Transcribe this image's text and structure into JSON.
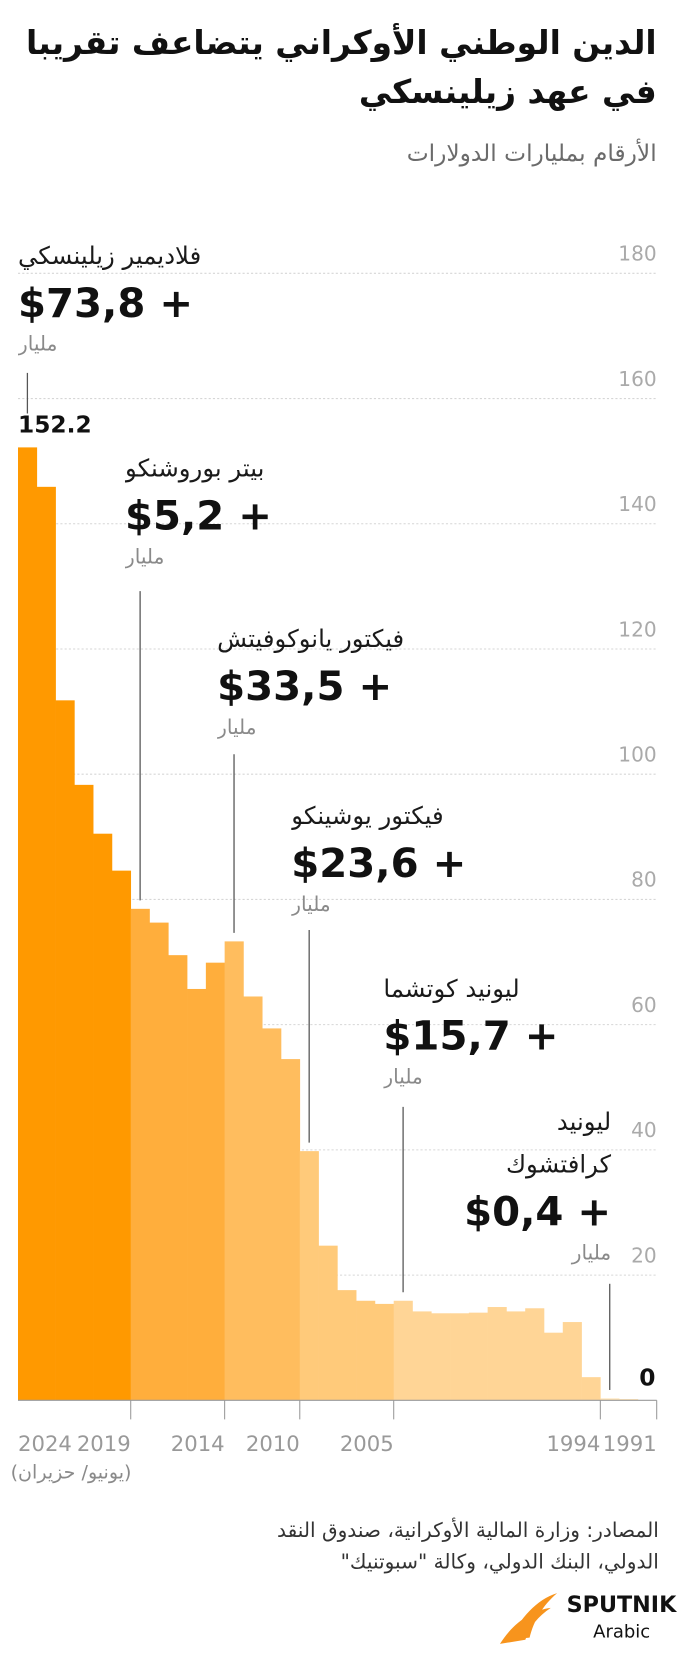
{
  "chart_data": {
    "type": "bar",
    "title": "الدين الوطني الأوكراني يتضاعف تقريبا في عهد زيلينسكي",
    "subtitle": "الأرقام بمليارات الدولارات",
    "x_note": "(يونيو/ حزيران)",
    "source": "المصادر: وزارة المالية الأوكرانية، صندوق النقد الدولي، البنك الدولي، وكالة \"سبوتنيك\"",
    "categories": [
      "2024",
      null,
      null,
      null,
      null,
      "2019",
      null,
      null,
      null,
      null,
      "2014",
      null,
      null,
      null,
      "2010",
      null,
      null,
      null,
      null,
      "2005",
      null,
      null,
      null,
      null,
      null,
      null,
      null,
      null,
      null,
      null,
      "1994",
      null,
      null,
      "1991"
    ],
    "values": [
      152.2,
      145.9,
      111.8,
      98.3,
      90.5,
      84.6,
      78.5,
      76.3,
      71.1,
      65.7,
      69.9,
      73.3,
      64.5,
      59.4,
      54.5,
      39.8,
      24.7,
      17.6,
      15.9,
      15.4,
      15.9,
      14.2,
      13.9,
      13.9,
      14.0,
      14.9,
      14.2,
      14.7,
      10.8,
      12.5,
      3.7,
      0.3,
      0.2,
      0
    ],
    "colors": [
      "#ff9900",
      "#ff9900",
      "#ff9900",
      "#ff9900",
      "#ff9900",
      "#ff9900",
      "#ffae3c",
      "#ffae3c",
      "#ffae3c",
      "#ffae3c",
      "#ffae3c",
      "#ffbd5e",
      "#ffbd5e",
      "#ffbd5e",
      "#ffbd5e",
      "#ffca7a",
      "#ffca7a",
      "#ffca7a",
      "#ffca7a",
      "#ffca7a",
      "#ffd596",
      "#ffd596",
      "#ffd596",
      "#ffd596",
      "#ffd596",
      "#ffd596",
      "#ffd596",
      "#ffd596",
      "#ffd596",
      "#ffd596",
      "#ffd596",
      "#ffe2b3",
      "#ffe2b3",
      "#ffe2b3"
    ],
    "labeled_categories": [
      "2024",
      "1991"
    ],
    "ylim": [
      0,
      180
    ],
    "yticks": [
      20,
      40,
      60,
      80,
      100,
      120,
      140,
      160,
      180
    ],
    "grid": true,
    "annotations": [
      {
        "name": "فلاديمير زيلينسكي",
        "amount": "$73,8 +",
        "unit": "مليار"
      },
      {
        "name": "بيتر بوروشنكو",
        "amount": "$5,2 +",
        "unit": "مليار"
      },
      {
        "name": "فيكتور يانوكوفيتش",
        "amount": "$33,5 +",
        "unit": "مليار"
      },
      {
        "name": "فيكتور يوشينكو",
        "amount": "$23,6 +",
        "unit": "مليار"
      },
      {
        "name": "ليونيد كوتشما",
        "amount": "$15,7 +",
        "unit": "مليار"
      },
      {
        "name": "ليونيد كرافتشوك",
        "amount": "$0,4 +",
        "unit": "مليار"
      }
    ]
  },
  "logo": {
    "name": "SPUTNIK",
    "sub": "Arabic"
  }
}
